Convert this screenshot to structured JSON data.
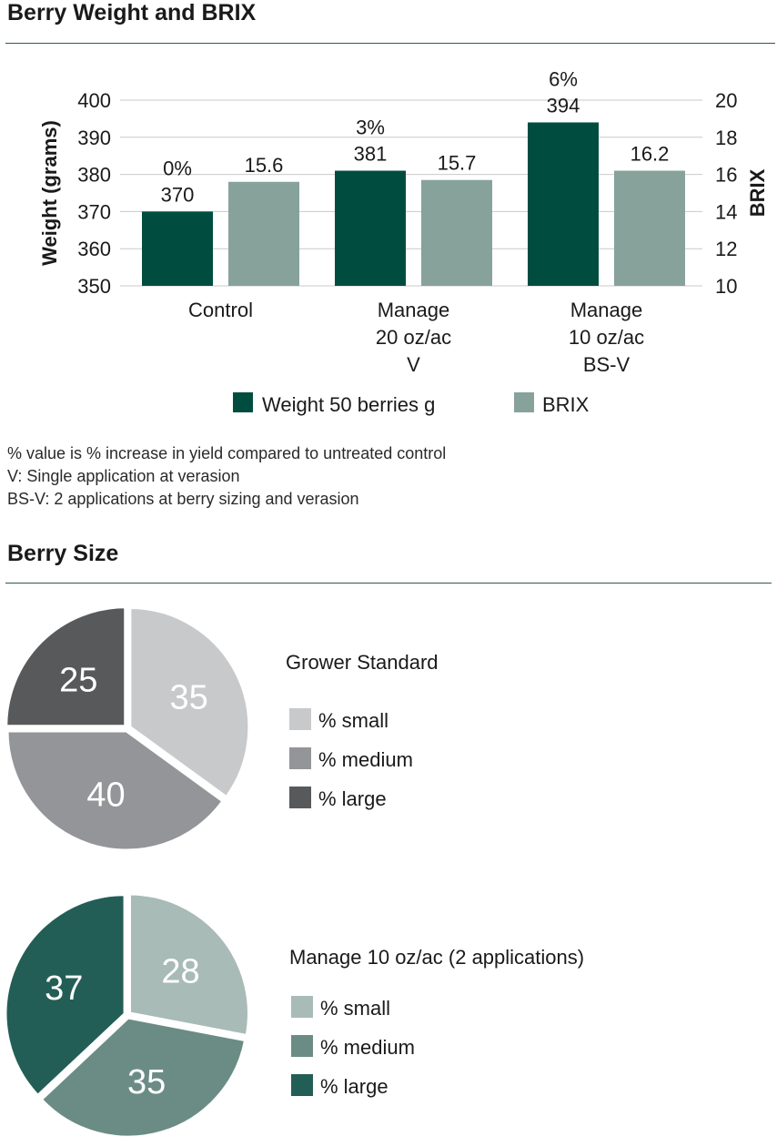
{
  "section1": {
    "title": "Berry Weight and BRIX"
  },
  "section2": {
    "title": "Berry Size"
  },
  "chart_data": [
    {
      "type": "bar",
      "title": "Berry Weight and BRIX",
      "categories": [
        [
          "Control"
        ],
        [
          "Manage",
          "20 oz/ac",
          "V"
        ],
        [
          "Manage",
          "10 oz/ac",
          "BS-V"
        ]
      ],
      "series": [
        {
          "name": "Weight 50 berries g",
          "axis": "left",
          "values": [
            370,
            381,
            394
          ],
          "pct_labels": [
            "0%",
            "3%",
            "6%"
          ],
          "color": "#004d40"
        },
        {
          "name": "BRIX",
          "axis": "right",
          "values": [
            15.6,
            15.7,
            16.2
          ],
          "color": "#87a29b"
        }
      ],
      "ylabel": "Weight (grams)",
      "ylim": [
        350,
        400
      ],
      "yticks": [
        "350",
        "360",
        "370",
        "380",
        "390",
        "400"
      ],
      "y2label": "BRIX",
      "y2lim": [
        10,
        20
      ],
      "y2ticks": [
        "10",
        "12",
        "14",
        "16",
        "18",
        "20"
      ],
      "grid": true,
      "legend": "bottom"
    },
    {
      "type": "pie",
      "title": "Grower Standard",
      "labels": [
        "% small",
        "% medium",
        "% large"
      ],
      "values": [
        35,
        40,
        25
      ],
      "colors": [
        "#c8c9cb",
        "#949598",
        "#58595b"
      ],
      "label_colors": [
        "#ffffff",
        "#ffffff",
        "#ffffff"
      ],
      "legend": "right"
    },
    {
      "type": "pie",
      "title": "Manage 10 oz/ac (2 applications)",
      "labels": [
        "% small",
        "% medium",
        "% large"
      ],
      "values": [
        28,
        35,
        37
      ],
      "colors": [
        "#a8bbb7",
        "#6b8c84",
        "#235e56"
      ],
      "label_colors": [
        "#ffffff",
        "#ffffff",
        "#ffffff"
      ],
      "legend": "right"
    }
  ],
  "footnotes": [
    "% value is % increase in yield compared to untreated control",
    "V: Single application at verasion",
    "BS-V: 2 applications at berry sizing and verasion"
  ]
}
